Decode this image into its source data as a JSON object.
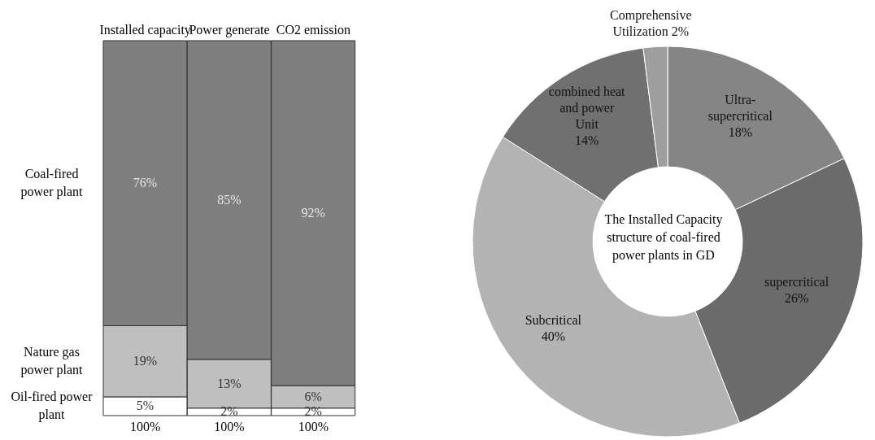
{
  "chart_data": [
    {
      "type": "bar",
      "stacked": true,
      "categories": [
        "Installed capacity",
        "Power generate",
        "CO2 emission"
      ],
      "series": [
        {
          "name": "Oil-fired power plant",
          "color": "#ffffff",
          "values": [
            5,
            2,
            2
          ],
          "value_labels": [
            "5%",
            "2%",
            "2%"
          ]
        },
        {
          "name": "Nature gas power plant",
          "color": "#bfbfbf",
          "values": [
            19,
            13,
            6
          ],
          "value_labels": [
            "19%",
            "13%",
            "6%"
          ]
        },
        {
          "name": "Coal-fired power plant",
          "color": "#7f7f7f",
          "values": [
            76,
            85,
            92
          ],
          "value_labels": [
            "76%",
            "85%",
            "92%"
          ]
        }
      ],
      "totals": [
        "100%",
        "100%",
        "100%"
      ]
    },
    {
      "type": "donut",
      "title": "The Installed Capacity structure of  coal-fired power plants in GD",
      "categories": [
        "Ultra-supercritical",
        "supercritical",
        "Subcritical",
        "combined heat and power Unit",
        "Comprehensive Utilization"
      ],
      "values": [
        18,
        26,
        40,
        14,
        2
      ],
      "colors": [
        "#858585",
        "#6b6b6b",
        "#b3b3b3",
        "#707070",
        "#9e9e9e"
      ],
      "value_labels": [
        "18%",
        "26%",
        "40%",
        "14%",
        "2%"
      ]
    }
  ]
}
